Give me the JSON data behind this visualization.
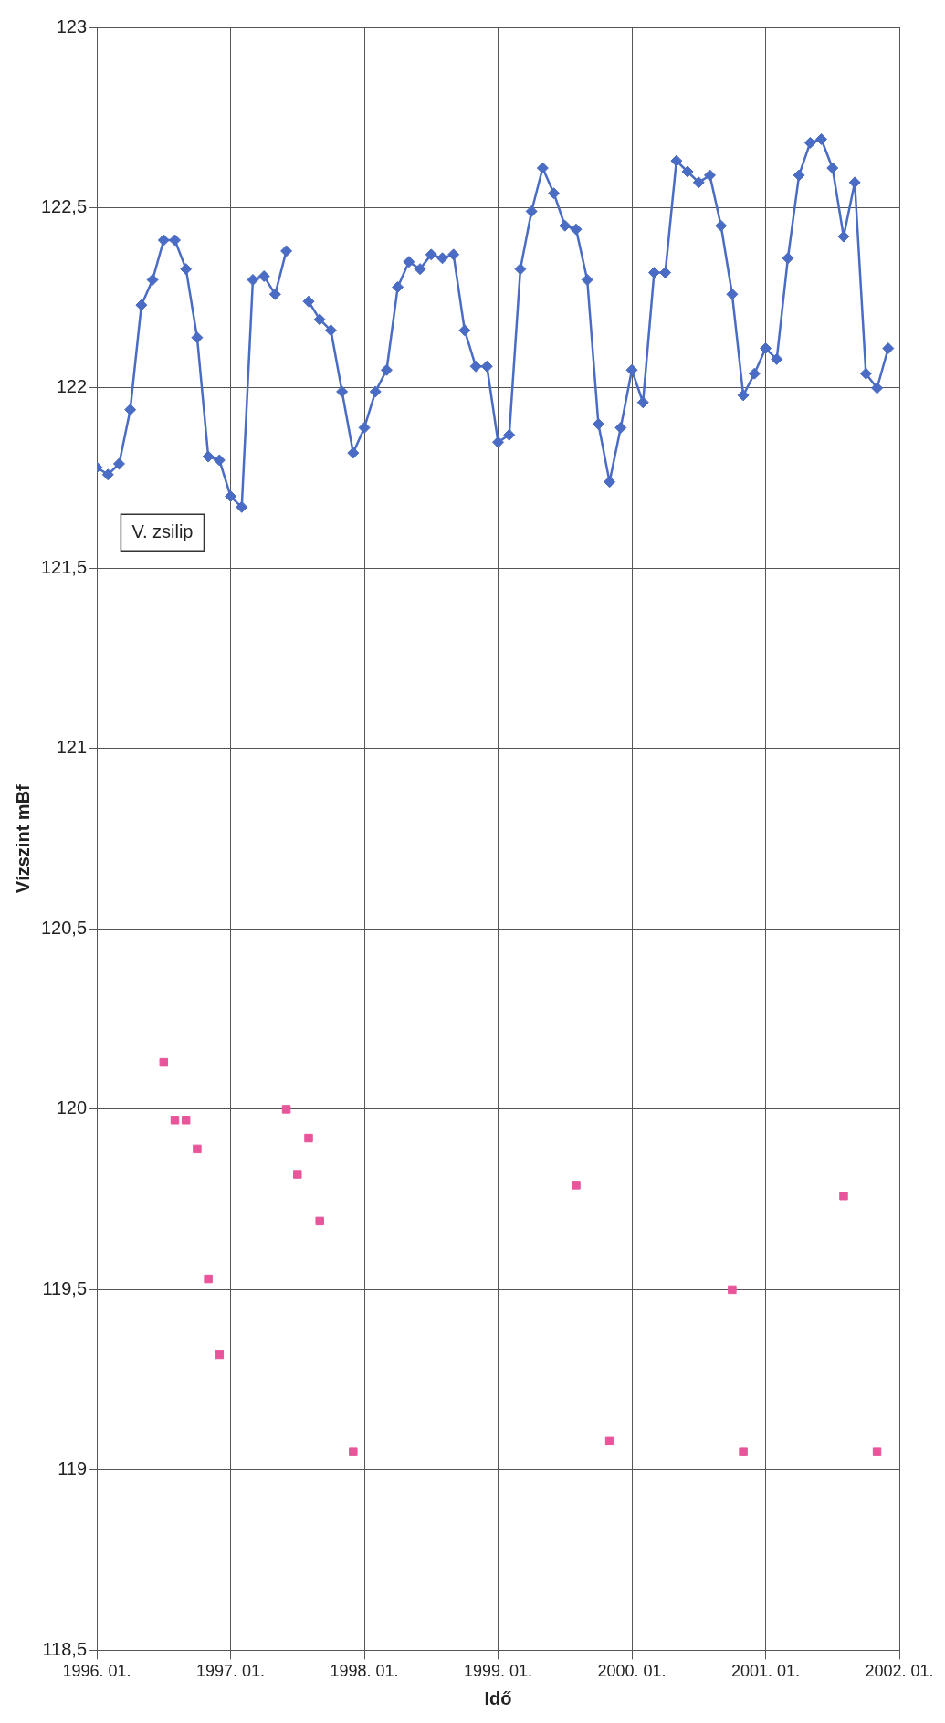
{
  "chart_data": {
    "type": "line",
    "xlabel": "Idő",
    "ylabel": "Vízszint mBf",
    "xlim": [
      "1996-01",
      "2002-01"
    ],
    "xticks": [
      {
        "value": "1996-01",
        "label": "1996. 01."
      },
      {
        "value": "1997-01",
        "label": "1997. 01."
      },
      {
        "value": "1998-01",
        "label": "1998. 01."
      },
      {
        "value": "1999-01",
        "label": "1999. 01."
      },
      {
        "value": "2000-01",
        "label": "2000. 01."
      },
      {
        "value": "2001-01",
        "label": "2001. 01."
      },
      {
        "value": "2002-01",
        "label": "2002. 01."
      }
    ],
    "ylim": [
      118.5,
      123
    ],
    "yticks": [
      {
        "value": 118.5,
        "label": "118,5"
      },
      119,
      {
        "value": 119.5,
        "label": "119,5"
      },
      120,
      {
        "value": 120.5,
        "label": "120,5"
      },
      121,
      {
        "value": 121.5,
        "label": "121,5"
      },
      122,
      {
        "value": 122.5,
        "label": "122,5"
      },
      123
    ],
    "grid": true,
    "legend": false,
    "series": [
      {
        "name": "V. zsilip",
        "type": "line",
        "color": "#4a6cc4",
        "marker": "diamond",
        "line_style": "solid",
        "x": [
          "1996-01",
          "1996-02",
          "1996-03",
          "1996-04",
          "1996-05",
          "1996-06",
          "1996-07",
          "1996-08",
          "1996-09",
          "1996-10",
          "1996-11",
          "1996-12",
          "1997-01",
          "1997-02",
          "1997-03",
          "1997-04",
          "1997-05",
          "1997-06",
          "1997-07",
          "1997-08",
          "1997-09",
          "1997-10",
          "1997-11",
          "1997-12",
          "1998-01",
          "1998-02",
          "1998-03",
          "1998-04",
          "1998-05",
          "1998-06",
          "1998-07",
          "1998-08",
          "1998-09",
          "1998-10",
          "1998-11",
          "1998-12",
          "1999-01",
          "1999-02",
          "1999-03",
          "1999-04",
          "1999-05",
          "1999-06",
          "1999-07",
          "1999-08",
          "1999-09",
          "1999-10",
          "1999-11",
          "1999-12",
          "2000-01",
          "2000-02",
          "2000-03",
          "2000-04",
          "2000-05",
          "2000-06",
          "2000-07",
          "2000-08",
          "2000-09",
          "2000-10",
          "2000-11",
          "2000-12",
          "2001-01",
          "2001-02",
          "2001-03",
          "2001-04",
          "2001-05",
          "2001-06",
          "2001-07",
          "2001-08",
          "2001-09",
          "2001-10",
          "2001-11",
          "2001-12"
        ],
        "values": [
          121.78,
          121.76,
          121.79,
          121.94,
          122.23,
          122.3,
          122.41,
          122.41,
          122.33,
          122.14,
          121.81,
          121.8,
          121.7,
          121.67,
          122.3,
          122.31,
          122.26,
          122.38,
          null,
          122.24,
          122.19,
          122.16,
          121.99,
          121.82,
          121.89,
          121.99,
          122.05,
          122.28,
          122.35,
          122.33,
          122.37,
          122.36,
          122.37,
          122.16,
          122.06,
          122.06,
          121.85,
          121.87,
          122.33,
          122.49,
          122.61,
          122.54,
          122.45,
          122.44,
          122.3,
          121.9,
          121.74,
          121.89,
          122.05,
          121.96,
          122.32,
          122.32,
          122.63,
          122.6,
          122.57,
          122.59,
          122.45,
          122.26,
          121.98,
          122.04,
          122.11,
          122.08,
          122.36,
          122.59,
          122.68,
          122.69,
          122.61,
          122.42,
          122.57,
          122.04,
          122,
          122.11
        ]
      },
      {
        "type": "scatter",
        "color": "#e8559b",
        "marker": "square",
        "x": [
          "1996-07",
          "1996-08",
          "1996-09",
          "1996-10",
          "1996-11",
          "1996-12",
          "1997-06",
          "1997-07",
          "1997-08",
          "1997-09",
          "1997-12",
          "1999-08",
          "1999-11",
          "2000-10",
          "2000-11",
          "2001-08",
          "2001-11"
        ],
        "values": [
          120.13,
          119.97,
          119.97,
          119.89,
          119.53,
          119.32,
          120,
          119.82,
          119.92,
          119.69,
          119.05,
          119.79,
          119.08,
          119.5,
          119.05,
          119.76,
          119.05
        ]
      }
    ]
  }
}
